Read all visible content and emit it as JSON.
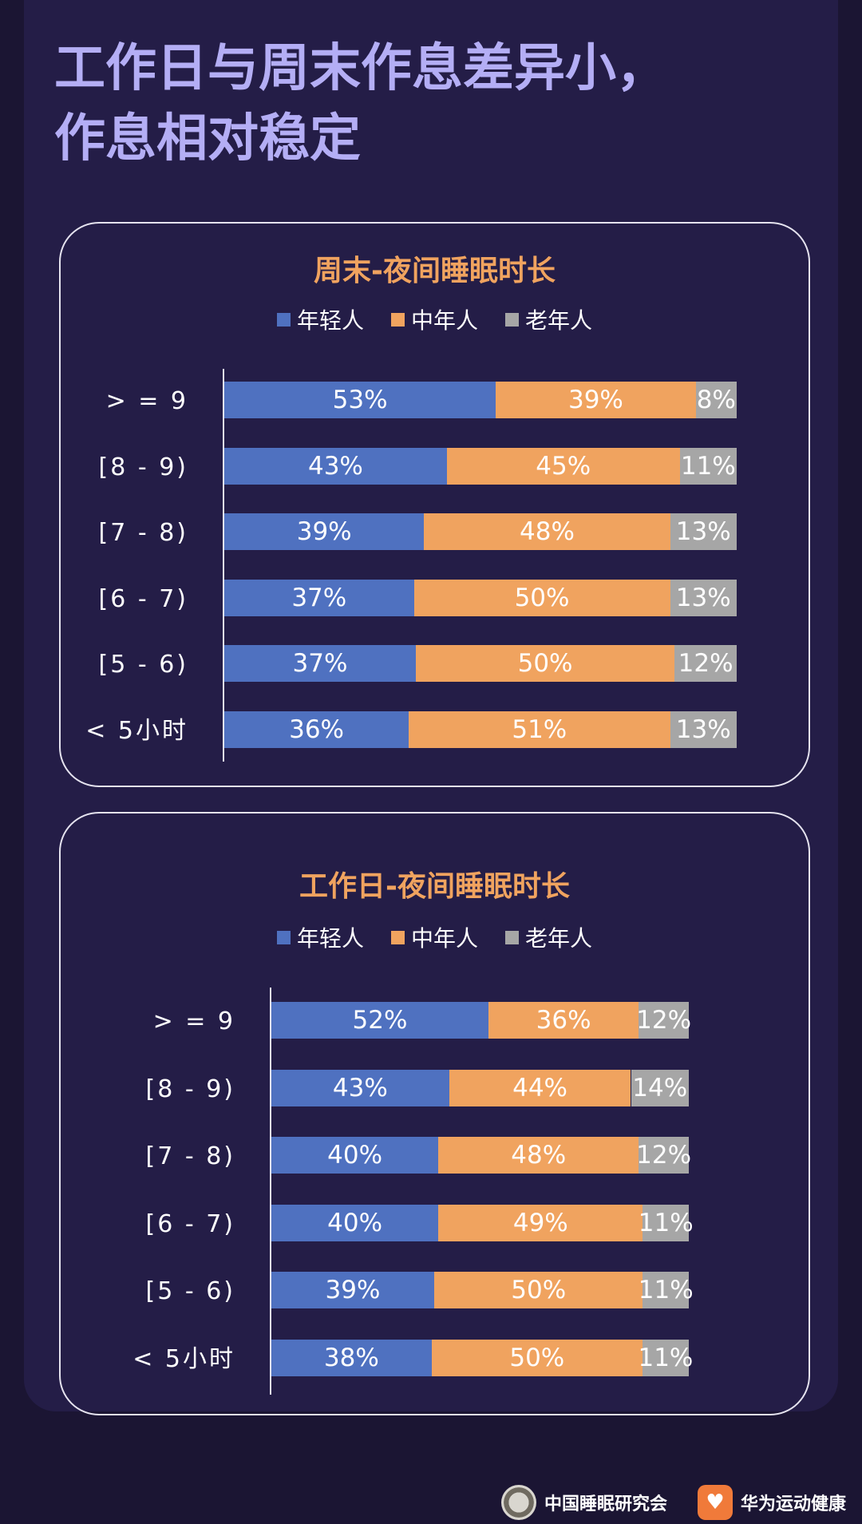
{
  "headline": {
    "line1": "工作日与周末作息差异小，",
    "line2": "作息相对稳定"
  },
  "colors": {
    "young": "#4f71c0",
    "middle": "#f0a35f",
    "old": "#a6a6a6"
  },
  "legend": [
    "年轻人",
    "中年人",
    "老年人"
  ],
  "chart_data": [
    {
      "type": "bar",
      "orientation": "horizontal",
      "stacked": true,
      "normalized": true,
      "title": "周末-夜间睡眠时长",
      "legend_position": "top",
      "categories": [
        "> = 9",
        "[8 - 9)",
        "[7 - 8)",
        "[6 - 7)",
        "[5 - 6)",
        "< 5小时"
      ],
      "series": [
        {
          "name": "年轻人",
          "values": [
            53,
            43,
            39,
            37,
            37,
            36
          ]
        },
        {
          "name": "中年人",
          "values": [
            39,
            45,
            48,
            50,
            50,
            51
          ]
        },
        {
          "name": "老年人",
          "values": [
            8,
            11,
            13,
            13,
            12,
            13
          ]
        }
      ],
      "value_suffix": "%"
    },
    {
      "type": "bar",
      "orientation": "horizontal",
      "stacked": true,
      "normalized": true,
      "title": "工作日-夜间睡眠时长",
      "legend_position": "top",
      "categories": [
        "> = 9",
        "[8 - 9)",
        "[7 - 8)",
        "[6 - 7)",
        "[5 - 6)",
        "< 5小时"
      ],
      "series": [
        {
          "name": "年轻人",
          "values": [
            52,
            43,
            40,
            40,
            39,
            38
          ]
        },
        {
          "name": "中年人",
          "values": [
            36,
            44,
            48,
            49,
            50,
            50
          ]
        },
        {
          "name": "老年人",
          "values": [
            12,
            14,
            12,
            11,
            11,
            11
          ]
        }
      ],
      "value_suffix": "%"
    }
  ],
  "footer": {
    "org1": "中国睡眠研究会",
    "org2": "华为运动健康"
  }
}
